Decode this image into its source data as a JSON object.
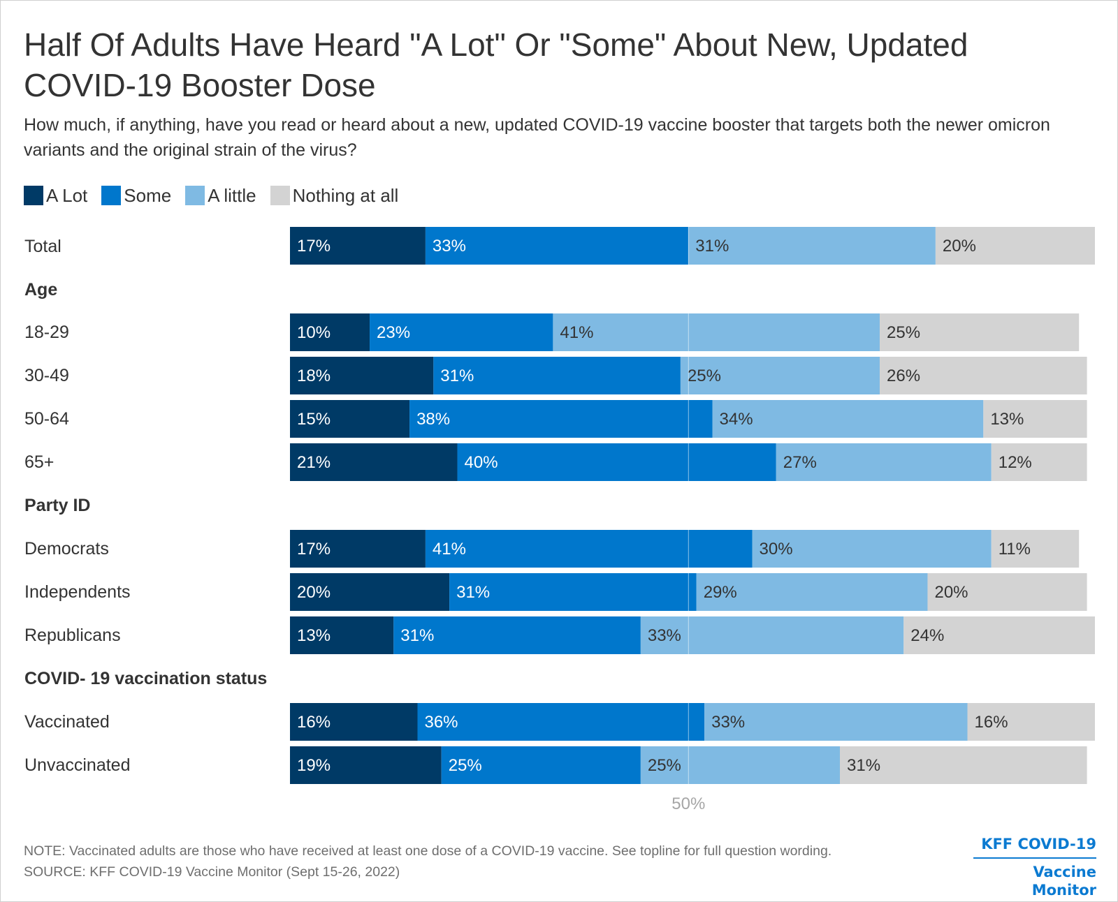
{
  "title": "Half Of Adults Have Heard \"A Lot\" Or \"Some\" About New, Updated COVID-19 Booster Dose",
  "subtitle": "How much, if anything, have you read or heard about a new, updated COVID-19 vaccine booster that targets both the newer omicron variants and the original strain of the virus?",
  "legend": [
    {
      "label": "A Lot",
      "color": "#003a66"
    },
    {
      "label": "Some",
      "color": "#0077cc"
    },
    {
      "label": "A little",
      "color": "#7fbae3"
    },
    {
      "label": "Nothing at all",
      "color": "#d3d3d3"
    }
  ],
  "group_headers": {
    "age": "Age",
    "party": "Party ID",
    "vax": "COVID- 19 vaccination status"
  },
  "row_labels": [
    "Total",
    "18-29",
    "30-49",
    "50-64",
    "65+",
    "Democrats",
    "Independents",
    "Republicans",
    "Vaccinated",
    "Unvaccinated"
  ],
  "chart_data": {
    "type": "bar",
    "orientation": "horizontal",
    "stacked": true,
    "categories": [
      "Total",
      "18-29",
      "30-49",
      "50-64",
      "65+",
      "Democrats",
      "Independents",
      "Republicans",
      "Vaccinated",
      "Unvaccinated"
    ],
    "groups": [
      {
        "name": "",
        "rows": [
          "Total"
        ]
      },
      {
        "name": "Age",
        "rows": [
          "18-29",
          "30-49",
          "50-64",
          "65+"
        ]
      },
      {
        "name": "Party ID",
        "rows": [
          "Democrats",
          "Independents",
          "Republicans"
        ]
      },
      {
        "name": "COVID- 19 vaccination status",
        "rows": [
          "Vaccinated",
          "Unvaccinated"
        ]
      }
    ],
    "series": [
      {
        "name": "A Lot",
        "color": "#003a66",
        "label_color": "#ffffff",
        "values": [
          17,
          10,
          18,
          15,
          21,
          17,
          20,
          13,
          16,
          19
        ]
      },
      {
        "name": "Some",
        "color": "#0077cc",
        "label_color": "#ffffff",
        "values": [
          33,
          23,
          31,
          38,
          40,
          41,
          31,
          31,
          36,
          25
        ]
      },
      {
        "name": "A little",
        "color": "#7fbae3",
        "label_color": "#333333",
        "values": [
          31,
          41,
          25,
          34,
          27,
          30,
          29,
          33,
          33,
          25
        ]
      },
      {
        "name": "Nothing at all",
        "color": "#d3d3d3",
        "label_color": "#333333",
        "values": [
          20,
          25,
          26,
          13,
          12,
          11,
          20,
          24,
          16,
          31
        ]
      }
    ],
    "value_format": "{v}%",
    "xlim": [
      0,
      101
    ],
    "reference_line": {
      "value": 50,
      "label": "50%"
    }
  },
  "note": "NOTE: Vaccinated adults are those who have received at least one dose of a COVID-19 vaccine. See topline for full question wording.",
  "source": "SOURCE: KFF COVID-19 Vaccine Monitor (Sept 15-26, 2022)",
  "brand": {
    "line1": "KFF COVID-19",
    "line2": "Vaccine Monitor"
  }
}
